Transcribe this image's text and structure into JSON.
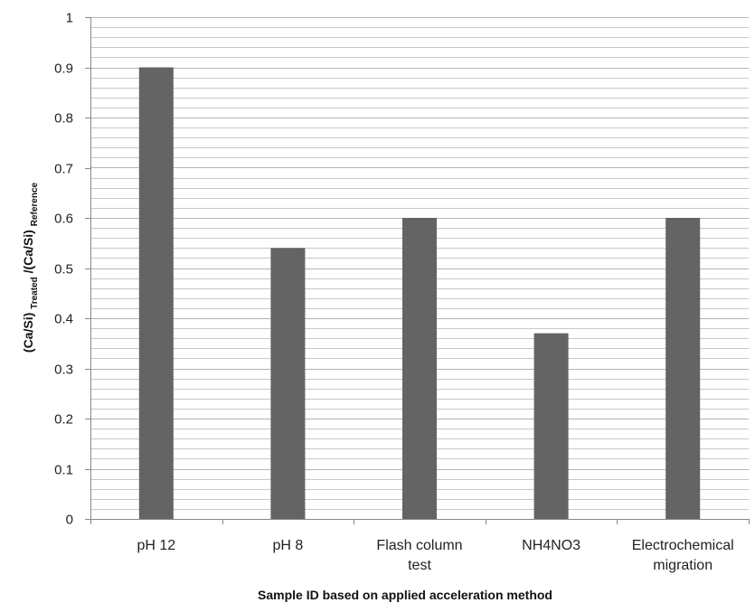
{
  "chart_data": {
    "type": "bar",
    "categories": [
      [
        "pH 12"
      ],
      [
        "pH 8"
      ],
      [
        "Flash column",
        "test"
      ],
      [
        "NH4NO3"
      ],
      [
        "Electrochemical",
        "migration"
      ]
    ],
    "values": [
      0.9,
      0.54,
      0.6,
      0.37,
      0.6
    ],
    "ylim": [
      0,
      1
    ],
    "major_ticks": [
      "0",
      "0.1",
      "0.2",
      "0.3",
      "0.4",
      "0.5",
      "0.6",
      "0.7",
      "0.8",
      "0.9",
      "1"
    ],
    "minor_step": 0.02,
    "grid": true,
    "legend": "none",
    "xlabel": "Sample ID based on applied acceleration method",
    "ylabel": {
      "main1": "(Ca/Si)",
      "sub1": "Treated",
      "main2": "/(Ca/Si)",
      "sub2": "Reference"
    },
    "colors": {
      "bar": "#646464",
      "grid": "#c8c8c8",
      "axis": "#888888"
    }
  }
}
